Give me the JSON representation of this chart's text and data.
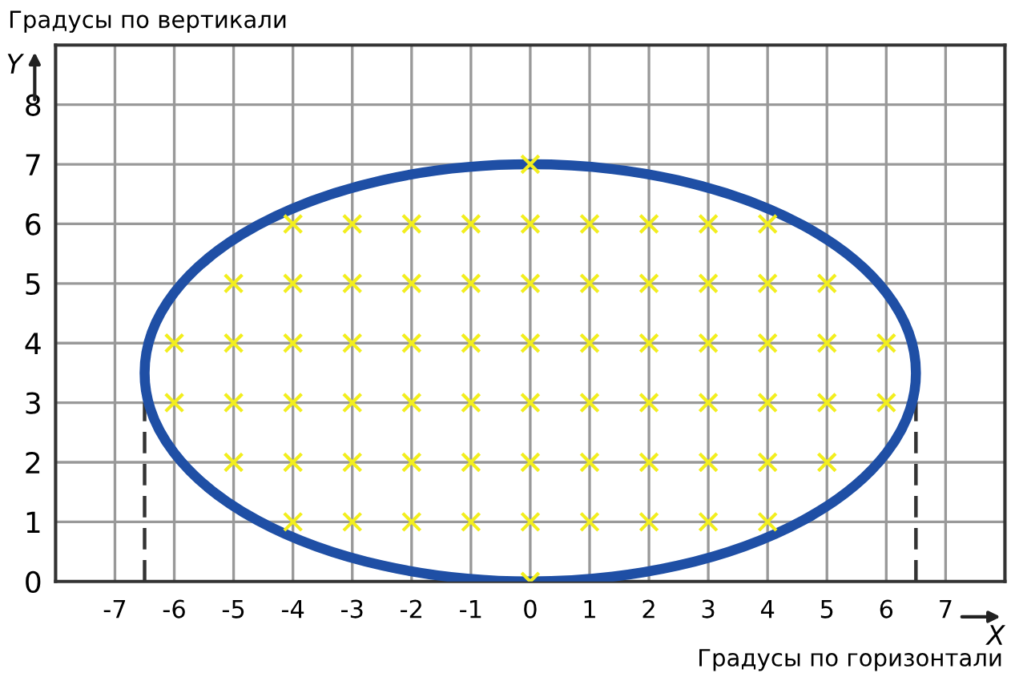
{
  "chart_data": {
    "type": "scatter",
    "xlabel": "X",
    "ylabel": "Y",
    "annotations": [
      "Градусы по вертикали",
      "Градусы по горизонтали"
    ],
    "xlim": [
      -8,
      8
    ],
    "xticks": [
      -7,
      -6,
      -5,
      -4,
      -3,
      -2,
      -1,
      0,
      1,
      2,
      3,
      4,
      5,
      6,
      7
    ],
    "ylim": [
      0,
      9
    ],
    "yticks": [
      0,
      1,
      2,
      3,
      4,
      5,
      6,
      7,
      8,
      {
        "value": 9,
        "label": null
      }
    ],
    "grid": true,
    "series": [
      {
        "type": "line",
        "color": "#333333",
        "line_style": "dashed",
        "x": [
          -6.5,
          -6.5
        ],
        "values": [
          0,
          3
        ]
      },
      {
        "type": "line",
        "color": "#333333",
        "line_style": "dashed",
        "x": [
          6.5,
          6.5
        ],
        "values": [
          0,
          3
        ]
      },
      {
        "color": "#f2ee1e",
        "marker": "cross",
        "x": [
          0,
          -4,
          -3,
          -2,
          -1,
          0,
          1,
          2,
          3,
          4,
          -5,
          -4,
          -3,
          -2,
          -1,
          0,
          1,
          2,
          3,
          4,
          5,
          -6,
          -5,
          -4,
          -3,
          -2,
          -1,
          0,
          1,
          2,
          3,
          4,
          5,
          6,
          -6,
          -5,
          -4,
          -3,
          -2,
          -1,
          0,
          1,
          2,
          3,
          4,
          5,
          6,
          -5,
          -4,
          -3,
          -2,
          -1,
          0,
          1,
          2,
          3,
          4,
          5,
          -4,
          -3,
          -2,
          -1,
          0,
          1,
          2,
          3,
          4,
          0
        ],
        "values": [
          7,
          6,
          6,
          6,
          6,
          6,
          6,
          6,
          6,
          6,
          5,
          5,
          5,
          5,
          5,
          5,
          5,
          5,
          5,
          5,
          5,
          4,
          4,
          4,
          4,
          4,
          4,
          4,
          4,
          4,
          4,
          4,
          4,
          4,
          3,
          3,
          3,
          3,
          3,
          3,
          3,
          3,
          3,
          3,
          3,
          3,
          3,
          2,
          2,
          2,
          2,
          2,
          2,
          2,
          2,
          2,
          2,
          2,
          1,
          1,
          1,
          1,
          1,
          1,
          1,
          1,
          1,
          0
        ]
      }
    ]
  }
}
